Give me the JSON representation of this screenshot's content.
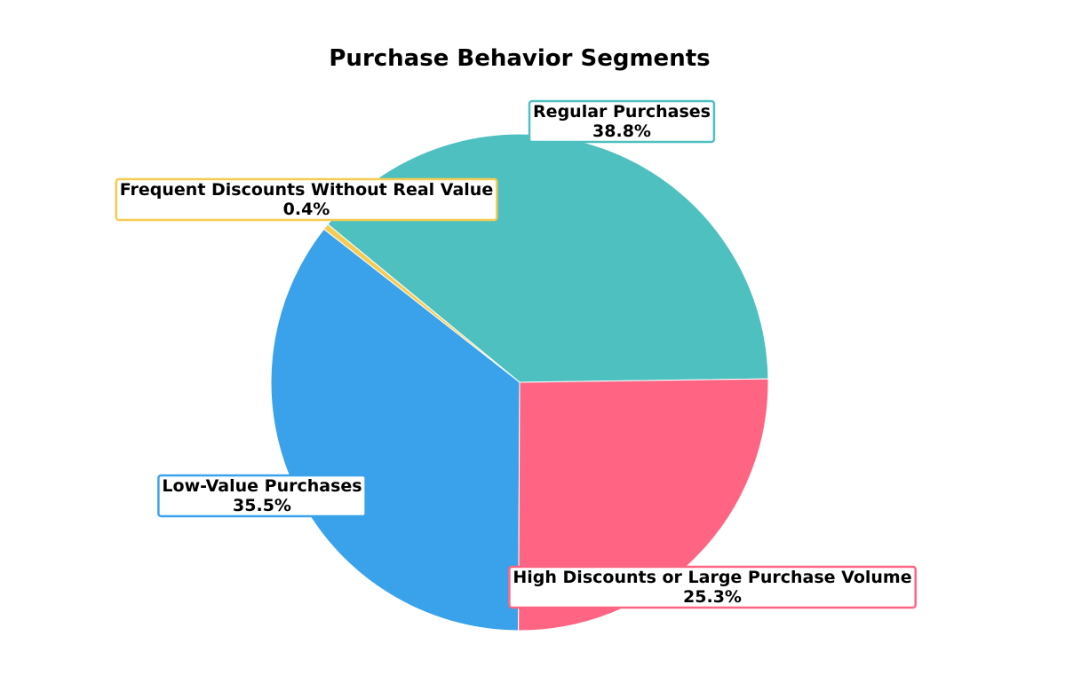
{
  "chart_data": {
    "type": "pie",
    "title": "Purchase Behavior Segments",
    "start_angle_deg": 0.8,
    "direction": "counterclockwise",
    "slices": [
      {
        "label": "Regular Purchases",
        "value": 38.8,
        "value_label": "38.8%",
        "color": "#4ec0c0"
      },
      {
        "label": "Frequent Discounts Without Real Value",
        "value": 0.4,
        "value_label": "0.4%",
        "color": "#f6cb52"
      },
      {
        "label": "Low-Value Purchases",
        "value": 35.5,
        "value_label": "35.5%",
        "color": "#3aa2ea"
      },
      {
        "label": "High Discounts or Large Purchase Volume",
        "value": 25.3,
        "value_label": "25.3%",
        "color": "#ff6583"
      }
    ]
  }
}
